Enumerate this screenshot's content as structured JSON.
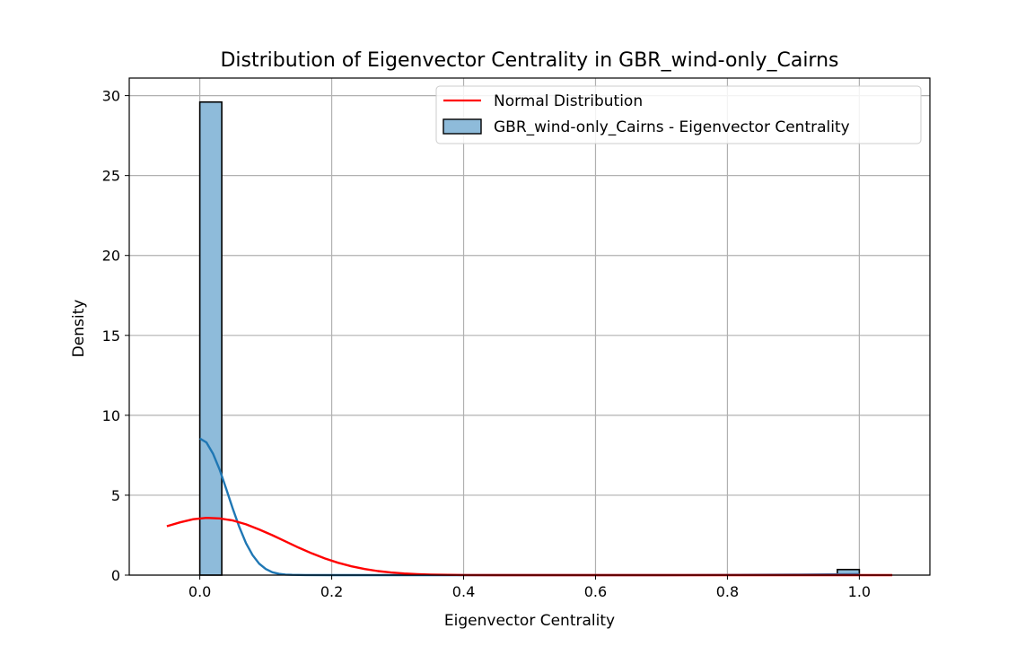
{
  "chart_data": {
    "type": "histogram",
    "title": "Distribution of Eigenvector Centrality in GBR_wind-only_Cairns",
    "xlabel": "Eigenvector Centrality",
    "ylabel": "Density",
    "xlim": [
      -0.107,
      1.107
    ],
    "ylim": [
      0,
      31.1
    ],
    "xticks": [
      0.0,
      0.2,
      0.4,
      0.6,
      0.8,
      1.0
    ],
    "xtick_labels": [
      "0.0",
      "0.2",
      "0.4",
      "0.6",
      "0.8",
      "1.0"
    ],
    "yticks": [
      0,
      5,
      10,
      15,
      20,
      25,
      30
    ],
    "ytick_labels": [
      "0",
      "5",
      "10",
      "15",
      "20",
      "25",
      "30"
    ],
    "grid": true,
    "legend_position": "top-right",
    "histogram": {
      "name": "GBR_wind-only_Cairns - Eigenvector Centrality",
      "color": "#8ebbda",
      "edge_color": "#000000",
      "bin_width": 0.0333,
      "bars": [
        {
          "x0": 0.0,
          "x1": 0.0333,
          "density": 29.6
        },
        {
          "x0": 0.9667,
          "x1": 1.0,
          "density": 0.35
        }
      ]
    },
    "kde": {
      "color": "#1f77b4",
      "x": [
        0.0,
        0.01,
        0.02,
        0.03,
        0.04,
        0.05,
        0.06,
        0.07,
        0.08,
        0.09,
        0.1,
        0.11,
        0.12,
        0.13,
        0.14,
        0.16,
        0.2,
        0.3,
        0.5,
        0.7,
        0.9,
        1.0
      ],
      "y": [
        8.55,
        8.3,
        7.6,
        6.6,
        5.4,
        4.15,
        3.0,
        2.0,
        1.25,
        0.72,
        0.38,
        0.18,
        0.08,
        0.035,
        0.015,
        0.004,
        0.0,
        0.0,
        0.0,
        0.0,
        0.03,
        0.06
      ]
    },
    "normal": {
      "name": "Normal Distribution",
      "color": "#ff0000",
      "x": [
        -0.05,
        -0.03,
        -0.01,
        0.01,
        0.03,
        0.05,
        0.07,
        0.09,
        0.11,
        0.13,
        0.15,
        0.17,
        0.19,
        0.21,
        0.23,
        0.25,
        0.27,
        0.29,
        0.31,
        0.33,
        0.35,
        0.4,
        0.45,
        0.5,
        0.6,
        0.8,
        1.05
      ],
      "y": [
        3.06,
        3.3,
        3.5,
        3.58,
        3.55,
        3.42,
        3.18,
        2.86,
        2.5,
        2.11,
        1.72,
        1.36,
        1.04,
        0.77,
        0.55,
        0.38,
        0.25,
        0.16,
        0.1,
        0.06,
        0.035,
        0.008,
        0.002,
        0.0,
        0.0,
        0.0,
        0.0
      ]
    }
  }
}
